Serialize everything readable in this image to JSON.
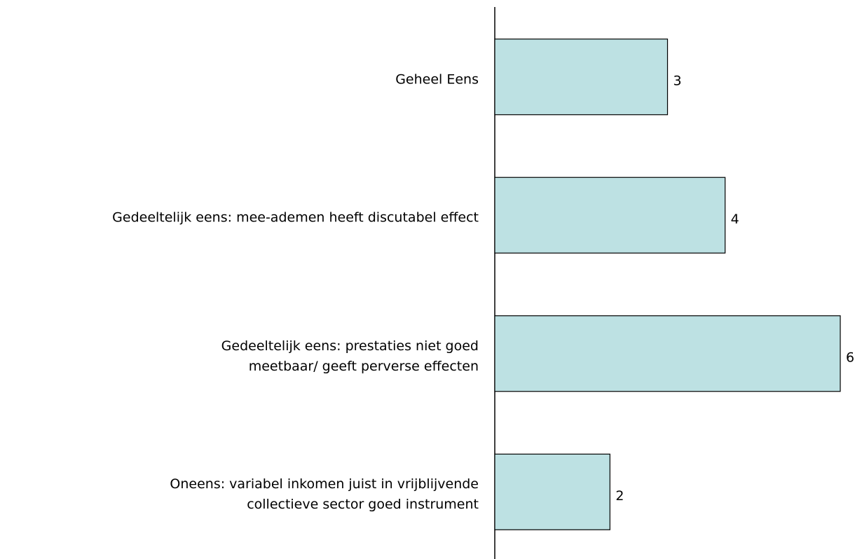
{
  "chart_data": {
    "type": "bar",
    "orientation": "horizontal",
    "categories": [
      "Geheel Eens",
      "Gedeeltelijk eens: mee-ademen heeft discutabel effect",
      "Gedeeltelijk eens: prestaties niet goed\nmeetbaar/ geeft perverse effecten",
      "Oneens: variabel inkomen juist in vrijblijvende\ncollectieve sector goed instrument"
    ],
    "values": [
      3,
      4,
      6,
      2
    ],
    "color": "#bde1e3"
  }
}
